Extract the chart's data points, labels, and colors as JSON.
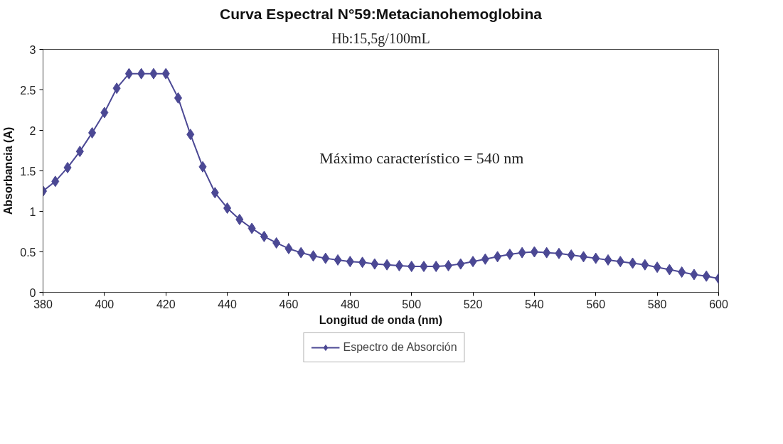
{
  "chart_data": {
    "type": "line",
    "title": "Curva Espectral N°59:Metacianohemoglobina",
    "subtitle": "Hb:15,5g/100mL",
    "xlabel": "Longitud de onda (nm)",
    "ylabel": "Absorbancia (A)",
    "annotations": [
      "Máximo característico = 540 nm"
    ],
    "x": [
      380,
      384,
      388,
      392,
      396,
      400,
      404,
      408,
      412,
      416,
      420,
      424,
      428,
      432,
      436,
      440,
      444,
      448,
      452,
      456,
      460,
      464,
      468,
      472,
      476,
      480,
      484,
      488,
      492,
      496,
      500,
      504,
      508,
      512,
      516,
      520,
      524,
      528,
      532,
      536,
      540,
      544,
      548,
      552,
      556,
      560,
      564,
      568,
      572,
      576,
      580,
      584,
      588,
      592,
      596,
      600
    ],
    "series": [
      {
        "name": "Espectro de Absorción",
        "color": "#4b4894",
        "values": [
          1.25,
          1.37,
          1.54,
          1.74,
          1.97,
          2.22,
          2.52,
          2.7,
          2.7,
          2.7,
          2.7,
          2.4,
          1.95,
          1.55,
          1.23,
          1.04,
          0.9,
          0.79,
          0.69,
          0.61,
          0.54,
          0.49,
          0.45,
          0.42,
          0.4,
          0.38,
          0.37,
          0.35,
          0.34,
          0.33,
          0.32,
          0.32,
          0.32,
          0.33,
          0.35,
          0.38,
          0.41,
          0.44,
          0.47,
          0.49,
          0.5,
          0.49,
          0.48,
          0.46,
          0.44,
          0.42,
          0.4,
          0.38,
          0.36,
          0.34,
          0.31,
          0.28,
          0.25,
          0.22,
          0.2,
          0.17
        ]
      }
    ],
    "xlim": [
      380,
      600
    ],
    "ylim": [
      0,
      3
    ],
    "xticks": [
      380,
      400,
      420,
      440,
      460,
      480,
      500,
      520,
      540,
      560,
      580,
      600
    ],
    "yticks": [
      0,
      {
        "value": 0.5,
        "label": "0.5"
      },
      1,
      {
        "value": 1.5,
        "label": "1.5"
      },
      2,
      {
        "value": 2.5,
        "label": "2.5"
      },
      3
    ],
    "grid": false,
    "legend": "bottom",
    "marker": "diamond",
    "line_style": "solid"
  }
}
